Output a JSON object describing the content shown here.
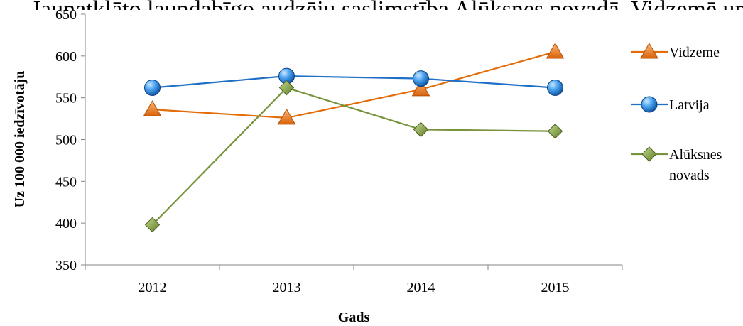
{
  "chart_data": {
    "type": "line",
    "title": "Jaunatklāto ļaundabīgo audzēju saslimstība Alūksnes novadā, Vidzemē un Latvijā",
    "xlabel": "Gads",
    "ylabel": "Uz 100 000 iedzīvotāju",
    "categories": [
      "2012",
      "2013",
      "2014",
      "2015"
    ],
    "ylim": [
      350,
      650
    ],
    "yticks": [
      350,
      400,
      450,
      500,
      550,
      600,
      650
    ],
    "grid": false,
    "legend_position": "right",
    "series": [
      {
        "name": "Vidzeme",
        "values": [
          536,
          526,
          560,
          605
        ],
        "color": "#E36C09",
        "marker": "triangle"
      },
      {
        "name": "Latvija",
        "values": [
          562,
          576,
          573,
          562
        ],
        "color": "#1F6FC6",
        "marker": "circle"
      },
      {
        "name_lines": [
          "Alūksnes",
          "novads"
        ],
        "name": "Alūksnes novads",
        "values": [
          398,
          562,
          512,
          510
        ],
        "color": "#77933C",
        "marker": "diamond"
      }
    ]
  }
}
